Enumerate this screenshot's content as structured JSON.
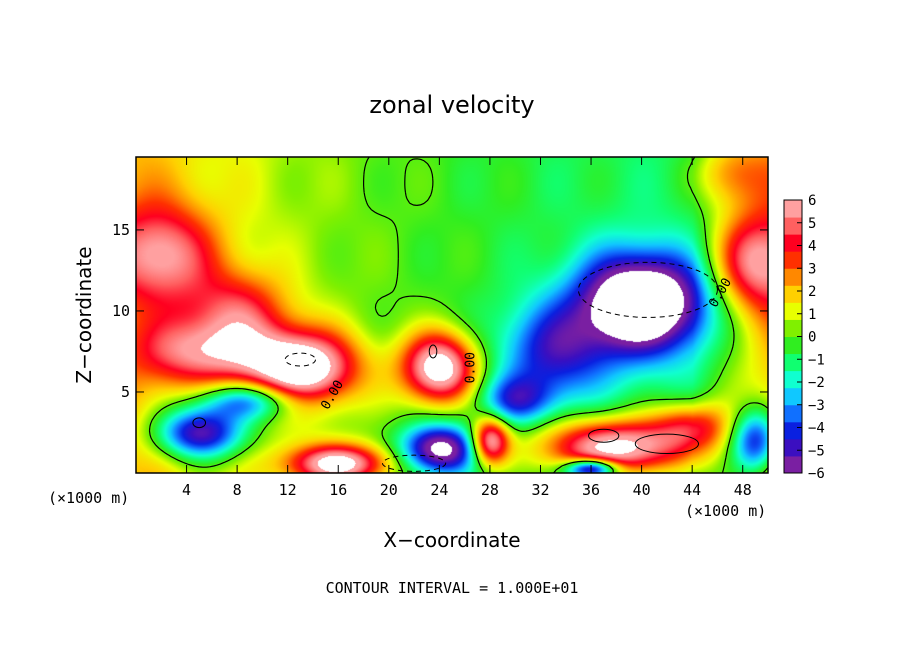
{
  "chart_data": {
    "type": "heatmap",
    "title": "zonal velocity",
    "xlabel": "X−coordinate",
    "ylabel": "Z−coordinate",
    "x_unit_left": "(×1000 m)",
    "x_unit_right": "(×1000 m)",
    "footnote": "CONTOUR INTERVAL = 1.000E+01",
    "xlim": [
      0,
      50
    ],
    "ylim": [
      0,
      19.5
    ],
    "x_ticks": [
      4,
      8,
      12,
      16,
      20,
      24,
      28,
      32,
      36,
      40,
      44,
      48
    ],
    "x_tick_labels": [
      "4",
      "8",
      "12",
      "16",
      "20",
      "24",
      "28",
      "32",
      "36",
      "40",
      "44",
      "48"
    ],
    "y_ticks": [
      5,
      10,
      15
    ],
    "y_tick_labels": [
      "5",
      "10",
      "15"
    ],
    "colorbar": {
      "min": -6,
      "max": 6,
      "ticks": [
        6,
        5,
        4,
        3,
        2,
        1,
        0,
        -1,
        -2,
        -3,
        -4,
        -5,
        -6
      ],
      "tick_labels": [
        "6",
        "5",
        "4",
        "3",
        "2",
        "1",
        "0",
        "−1",
        "−2",
        "−3",
        "−4",
        "−5",
        "−6"
      ],
      "colors": [
        "#7a1fa2",
        "#3b0fc0",
        "#0a20e0",
        "#1070ff",
        "#10c8ff",
        "#10ffd0",
        "#10ff70",
        "#30ee20",
        "#80f000",
        "#e8ff00",
        "#ffd000",
        "#ff8800",
        "#ff3000",
        "#ff0020",
        "#ff6060",
        "#ffa0a0"
      ],
      "saturated_color": "#ffffff"
    },
    "contour_labels": [
      "0.00",
      "0.00",
      "0.00",
      "0.00"
    ],
    "features": [
      {
        "kind": "max",
        "x": 2,
        "z": 13.5,
        "value": 4.5,
        "sx": 4,
        "sz": 3
      },
      {
        "kind": "max",
        "x": 8,
        "z": 10,
        "value": 3.5,
        "sx": 4,
        "sz": 2.5
      },
      {
        "kind": "max",
        "x": 5,
        "z": 7.5,
        "value": 4,
        "sx": 5,
        "sz": 2
      },
      {
        "kind": "max",
        "x": 49,
        "z": 13,
        "value": 5,
        "sx": 3.5,
        "sz": 3
      },
      {
        "kind": "max",
        "x": 47,
        "z": 18.5,
        "value": 2.5,
        "sx": 3,
        "sz": 2
      },
      {
        "kind": "max",
        "x": 13,
        "z": 6.5,
        "value": 8,
        "sx": 4.5,
        "sz": 2.3
      },
      {
        "kind": "max",
        "x": 24,
        "z": 6.5,
        "value": 8,
        "sx": 3,
        "sz": 2.2
      },
      {
        "kind": "max",
        "x": 5,
        "z": 2.5,
        "value": -7,
        "sx": 3.5,
        "sz": 1.6
      },
      {
        "kind": "max",
        "x": 9,
        "z": 4.5,
        "value": -5,
        "sx": 4,
        "sz": 1.2
      },
      {
        "kind": "max",
        "x": 40,
        "z": 10.5,
        "value": -9,
        "sx": 5,
        "sz": 3
      },
      {
        "kind": "max",
        "x": 33,
        "z": 7.5,
        "value": -4,
        "sx": 4.5,
        "sz": 3
      },
      {
        "kind": "max",
        "x": 30,
        "z": 4.5,
        "value": -3.5,
        "sx": 3,
        "sz": 1.5
      },
      {
        "kind": "max",
        "x": 24,
        "z": 1.5,
        "value": -7,
        "sx": 3,
        "sz": 1.5
      },
      {
        "kind": "max",
        "x": 16,
        "z": 0.6,
        "value": 7,
        "sx": 4,
        "sz": 1.2
      },
      {
        "kind": "max",
        "x": 38,
        "z": 1.6,
        "value": 8,
        "sx": 6,
        "sz": 1.8
      },
      {
        "kind": "max",
        "x": 28,
        "z": 2,
        "value": 7,
        "sx": 1.5,
        "sz": 1.5
      },
      {
        "kind": "max",
        "x": 44,
        "z": 3,
        "value": 4,
        "sx": 3,
        "sz": 1.5
      },
      {
        "kind": "max",
        "x": 49,
        "z": 2,
        "value": -6,
        "sx": 2,
        "sz": 2
      },
      {
        "kind": "max",
        "x": 36,
        "z": 0.3,
        "value": -8,
        "sx": 2,
        "sz": 0.6
      }
    ]
  }
}
